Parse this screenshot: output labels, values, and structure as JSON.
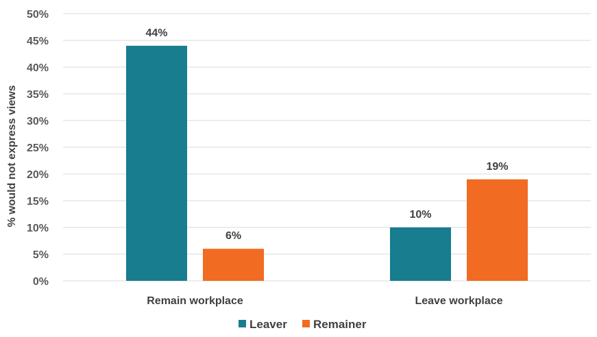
{
  "chart_data": {
    "type": "bar",
    "categories": [
      "Remain workplace",
      "Leave workplace"
    ],
    "series": [
      {
        "name": "Leaver",
        "values": [
          44,
          10
        ],
        "labels": [
          "44%",
          "10%"
        ],
        "color": "#177d8f"
      },
      {
        "name": "Remainer",
        "values": [
          6,
          19
        ],
        "labels": [
          "6%",
          "19%"
        ],
        "color": "#f16b22"
      }
    ],
    "ylabel": "% would not express views",
    "ylim": [
      0,
      50
    ],
    "yticks": [
      0,
      5,
      10,
      15,
      20,
      25,
      30,
      35,
      40,
      45,
      50
    ],
    "ytick_labels": [
      "0%",
      "5%",
      "10%",
      "15%",
      "20%",
      "25%",
      "30%",
      "35%",
      "40%",
      "45%",
      "50%"
    ],
    "grid": true,
    "legend_position": "bottom"
  }
}
